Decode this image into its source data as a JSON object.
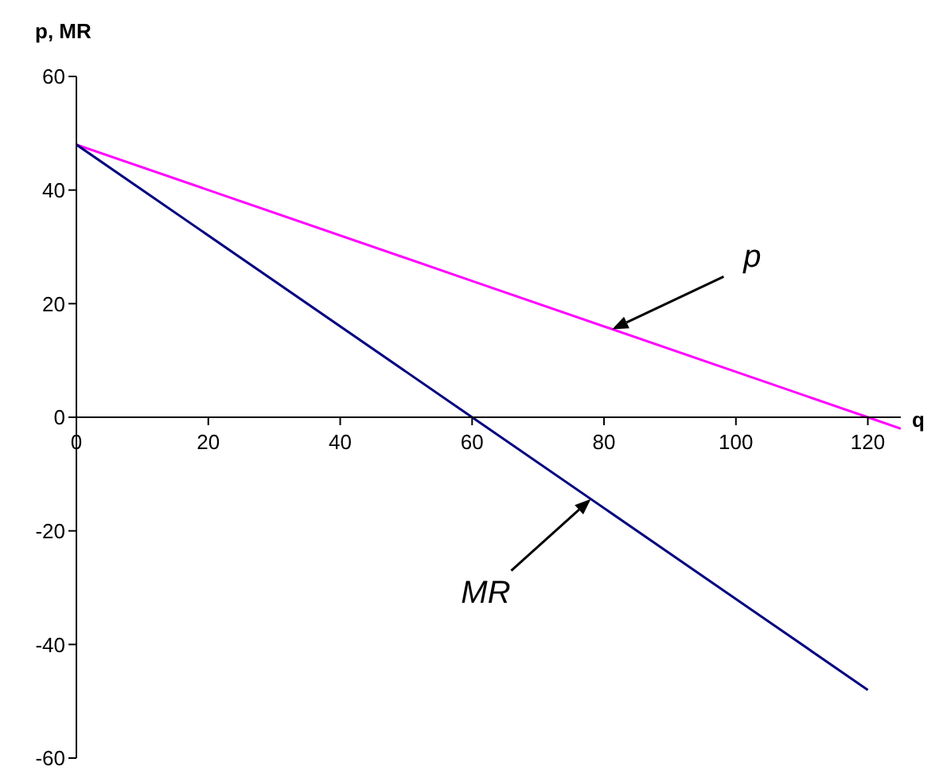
{
  "chart_data": {
    "type": "line",
    "xlabel": "q",
    "ylabel": "p, MR",
    "xlim": [
      0,
      125
    ],
    "xticks": [
      0,
      20,
      40,
      60,
      80,
      100,
      120
    ],
    "ylim": [
      -60,
      60
    ],
    "yticks": [
      -60,
      -40,
      -20,
      0,
      20,
      40,
      60
    ],
    "marker": "none",
    "line_style": "solid",
    "series": [
      {
        "color": "#ff00ff",
        "x": [
          0,
          60,
          120,
          125
        ],
        "values": [
          48,
          24,
          0,
          -2
        ]
      },
      {
        "color": "#000080",
        "x": [
          0,
          60,
          120
        ],
        "values": [
          48,
          0,
          -48
        ]
      }
    ],
    "annotations": [
      "p",
      "MR"
    ]
  }
}
